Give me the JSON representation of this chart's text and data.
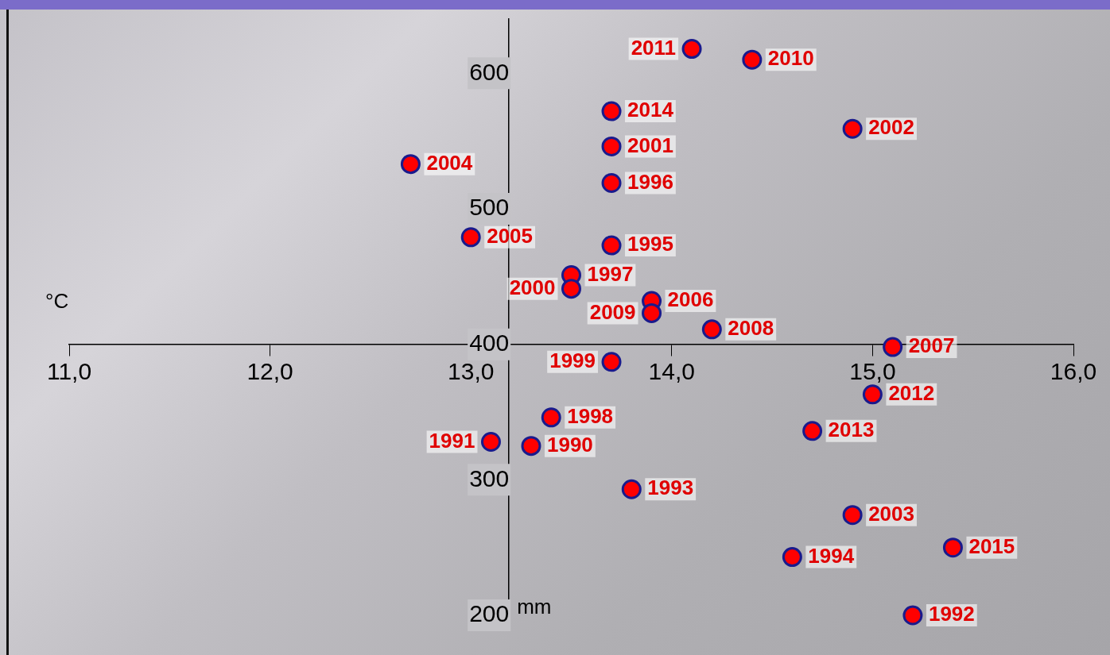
{
  "chart_data": {
    "type": "scatter",
    "xlabel": "°C",
    "ylabel": "mm",
    "marker": "circle",
    "grid": false,
    "legend": false,
    "xlim": [
      11,
      16
    ],
    "ylim": [
      200,
      640
    ],
    "xticks": [
      {
        "value": 11,
        "label": "11,0"
      },
      {
        "value": 12,
        "label": "12,0"
      },
      {
        "value": 13,
        "label": "13,0"
      },
      {
        "value": 14,
        "label": "14,0"
      },
      {
        "value": 15,
        "label": "15,0"
      },
      {
        "value": 16,
        "label": "16,0"
      }
    ],
    "yticks": [
      200,
      300,
      400,
      500,
      600
    ],
    "series": [
      {
        "color": "#ff0000",
        "x": [
          14.1,
          14.4,
          13.7,
          14.9,
          13.7,
          12.7,
          13.7,
          13.0,
          13.7,
          13.5,
          13.5,
          13.9,
          13.9,
          14.2,
          15.1,
          13.7,
          15.0,
          13.4,
          14.7,
          13.1,
          13.3,
          13.8,
          14.9,
          15.4,
          14.6,
          15.2
        ],
        "values": [
          618,
          610,
          572,
          559,
          546,
          533,
          519,
          479,
          473,
          451,
          441,
          432,
          423,
          411,
          398,
          387,
          363,
          346,
          336,
          328,
          325,
          293,
          274,
          250,
          243,
          200
        ]
      }
    ],
    "annotations": [
      {
        "text": "2011",
        "x": 14.1,
        "y": 618
      },
      {
        "text": "2010",
        "x": 14.4,
        "y": 610
      },
      {
        "text": "2014",
        "x": 13.7,
        "y": 572
      },
      {
        "text": "2002",
        "x": 14.9,
        "y": 559
      },
      {
        "text": "2001",
        "x": 13.7,
        "y": 546
      },
      {
        "text": "2004",
        "x": 12.7,
        "y": 533
      },
      {
        "text": "1996",
        "x": 13.7,
        "y": 519
      },
      {
        "text": "2005",
        "x": 13.0,
        "y": 479
      },
      {
        "text": "1995",
        "x": 13.7,
        "y": 473
      },
      {
        "text": "1997",
        "x": 13.5,
        "y": 451
      },
      {
        "text": "2000",
        "x": 13.5,
        "y": 441
      },
      {
        "text": "2006",
        "x": 13.9,
        "y": 432
      },
      {
        "text": "2009",
        "x": 13.9,
        "y": 423
      },
      {
        "text": "2008",
        "x": 14.2,
        "y": 411
      },
      {
        "text": "2007",
        "x": 15.1,
        "y": 398
      },
      {
        "text": "1999",
        "x": 13.7,
        "y": 387
      },
      {
        "text": "2012",
        "x": 15.0,
        "y": 363
      },
      {
        "text": "1998",
        "x": 13.4,
        "y": 346
      },
      {
        "text": "2013",
        "x": 14.7,
        "y": 336
      },
      {
        "text": "1991",
        "x": 13.1,
        "y": 328
      },
      {
        "text": "1990",
        "x": 13.3,
        "y": 325
      },
      {
        "text": "1993",
        "x": 13.8,
        "y": 293
      },
      {
        "text": "2003",
        "x": 14.9,
        "y": 274
      },
      {
        "text": "2015",
        "x": 15.4,
        "y": 250
      },
      {
        "text": "1994",
        "x": 14.6,
        "y": 243
      },
      {
        "text": "1992",
        "x": 15.2,
        "y": 200
      }
    ]
  }
}
